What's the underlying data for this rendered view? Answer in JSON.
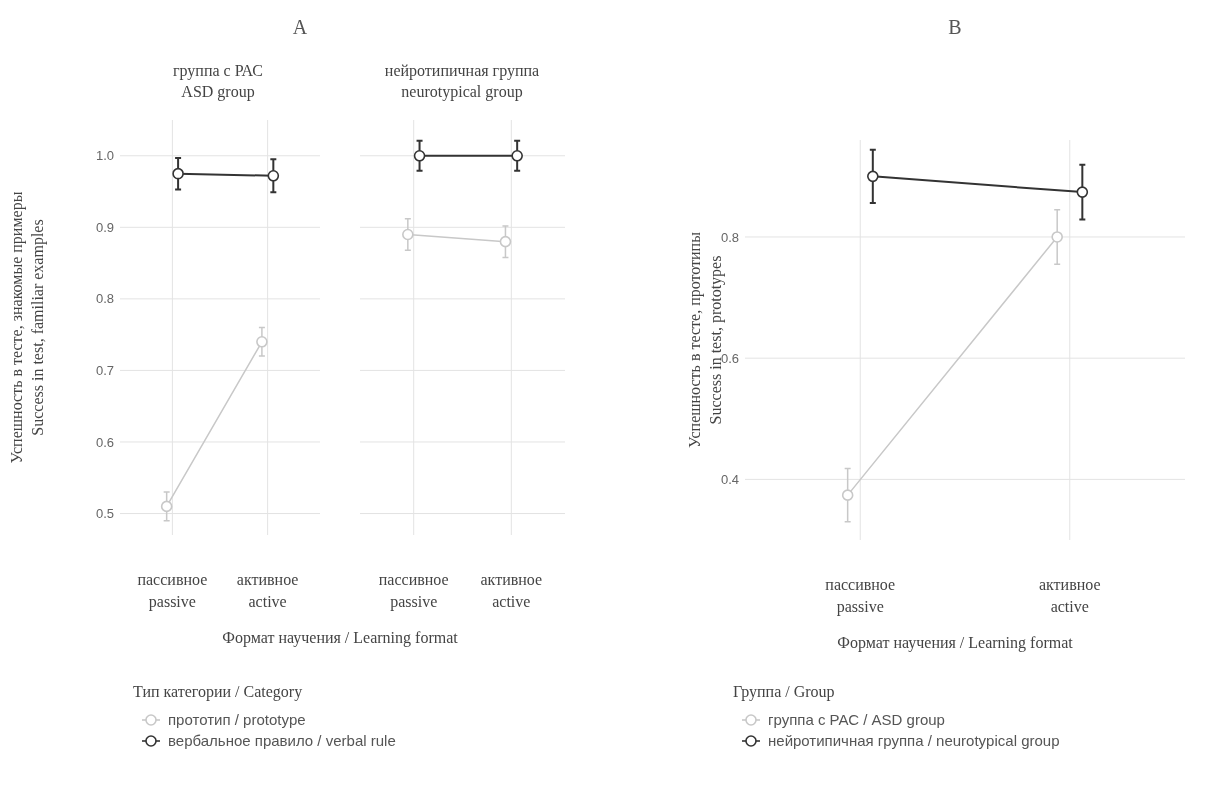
{
  "chart_data": [
    {
      "type": "line",
      "title": "A",
      "subtitle": "группа с РАС\nASD group",
      "xlabel": "Формат научения / Learning format",
      "ylabel": "Успешность в тесте, знакомые примеры\nSuccess in test, familiar examples",
      "categories": [
        "пассивное\npassive",
        "активное\nactive"
      ],
      "ylim": [
        0.47,
        1.05
      ],
      "yticks": [
        0.5,
        0.6,
        0.7,
        0.8,
        0.9,
        {
          "value": 1,
          "label": "1.0"
        }
      ],
      "grid": true,
      "marker": "circle",
      "legend": "bottom",
      "legend_title": "Тип категории / Category",
      "series": [
        {
          "name": "прототип / prototype",
          "color": "#c8c8c8",
          "values": [
            0.51,
            0.74
          ],
          "errors": [
            0.02,
            0.02
          ]
        },
        {
          "name": "вербальное правило / verbal rule",
          "color": "#333333",
          "values": [
            0.975,
            0.972
          ],
          "errors": [
            0.022,
            0.023
          ]
        }
      ]
    },
    {
      "type": "line",
      "subtitle": "нейротипичная группа\nneurotypical group",
      "categories": [
        "пассивное\npassive",
        "активное\nactive"
      ],
      "ylim": [
        0.47,
        1.05
      ],
      "yticks": [
        0.5,
        0.6,
        0.7,
        0.8,
        0.9,
        1
      ],
      "tick_labels": "x",
      "grid": true,
      "marker": "circle",
      "series": [
        {
          "color": "#c8c8c8",
          "values": [
            0.89,
            0.88
          ],
          "errors": [
            0.022,
            0.022
          ]
        },
        {
          "color": "#333333",
          "values": [
            1.0,
            1.0
          ],
          "errors": [
            0.021,
            0.021
          ]
        }
      ]
    },
    {
      "type": "line",
      "title": "B",
      "xlabel": "Формат научения / Learning format",
      "ylabel": "Успешность в тесте, прототипы\nSuccess in test, prototypes",
      "categories": [
        "пассивное\npassive",
        "активное\nactive"
      ],
      "ylim": [
        0.3,
        0.96
      ],
      "yticks": [
        0.4,
        0.6,
        0.8
      ],
      "grid": true,
      "marker": "circle",
      "legend": "bottom",
      "legend_title": "Группа / Group",
      "series": [
        {
          "name": "группа с РАС / ASD group",
          "color": "#c8c8c8",
          "values": [
            0.374,
            0.8
          ],
          "errors": [
            0.044,
            0.045
          ]
        },
        {
          "name": "нейротипичная группа / neurotypical group",
          "color": "#333333",
          "values": [
            0.9,
            0.874
          ],
          "errors": [
            0.044,
            0.045
          ]
        }
      ]
    }
  ]
}
